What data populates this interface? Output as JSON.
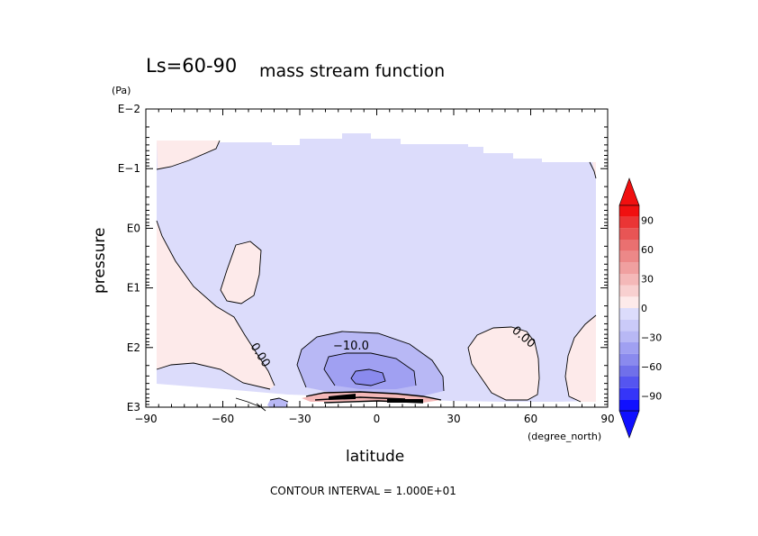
{
  "chart_data": {
    "type": "contour",
    "title_main": "Ls=60-90",
    "title_sub": "mass stream function",
    "xlabel": "latitude",
    "xunit": "(degree_north)",
    "ylabel": "pressure",
    "yunit": "(Pa)",
    "x_ticks": [
      -90,
      -60,
      -30,
      0,
      30,
      60,
      90
    ],
    "x_tick_labels": [
      "−90",
      "−60",
      "−30",
      "0",
      "30",
      "60",
      "90"
    ],
    "xlim": [
      -90,
      90
    ],
    "y_ticks_log10": [
      -2,
      -1,
      0,
      1,
      2,
      3
    ],
    "y_tick_labels": [
      "E−2",
      "E−1",
      "E0",
      "E1",
      "E2",
      "E3"
    ],
    "ylim_log10": [
      -2,
      3
    ],
    "y_direction": "pressure increases downward",
    "contour_labels": [
      {
        "text": "−10.0",
        "lat": -3,
        "log10p": 1.95
      },
      {
        "text": "0.00",
        "lat": -42,
        "log10p": 2.1
      },
      {
        "text": "0.00",
        "lat": 55,
        "log10p": 1.9
      }
    ],
    "colorbar": {
      "levels": [
        -90,
        -60,
        -30,
        0,
        30,
        60,
        90
      ],
      "level_labels": [
        "−90",
        "−60",
        "−30",
        "0",
        "30",
        "60",
        "90"
      ],
      "colors": [
        "#1010ff",
        "#3535f8",
        "#5555f0",
        "#7070ea",
        "#8a8aee",
        "#a0a0f2",
        "#b8b8f5",
        "#cacaf8",
        "#dcdcfb",
        "#fdeaea",
        "#f8d0d0",
        "#f4b8b8",
        "#f0a0a0",
        "#ec8888",
        "#ea7070",
        "#e85555",
        "#ea3535",
        "#f01010"
      ]
    },
    "contour_interval": "CONTOUR INTERVAL = 1.000E+01"
  }
}
